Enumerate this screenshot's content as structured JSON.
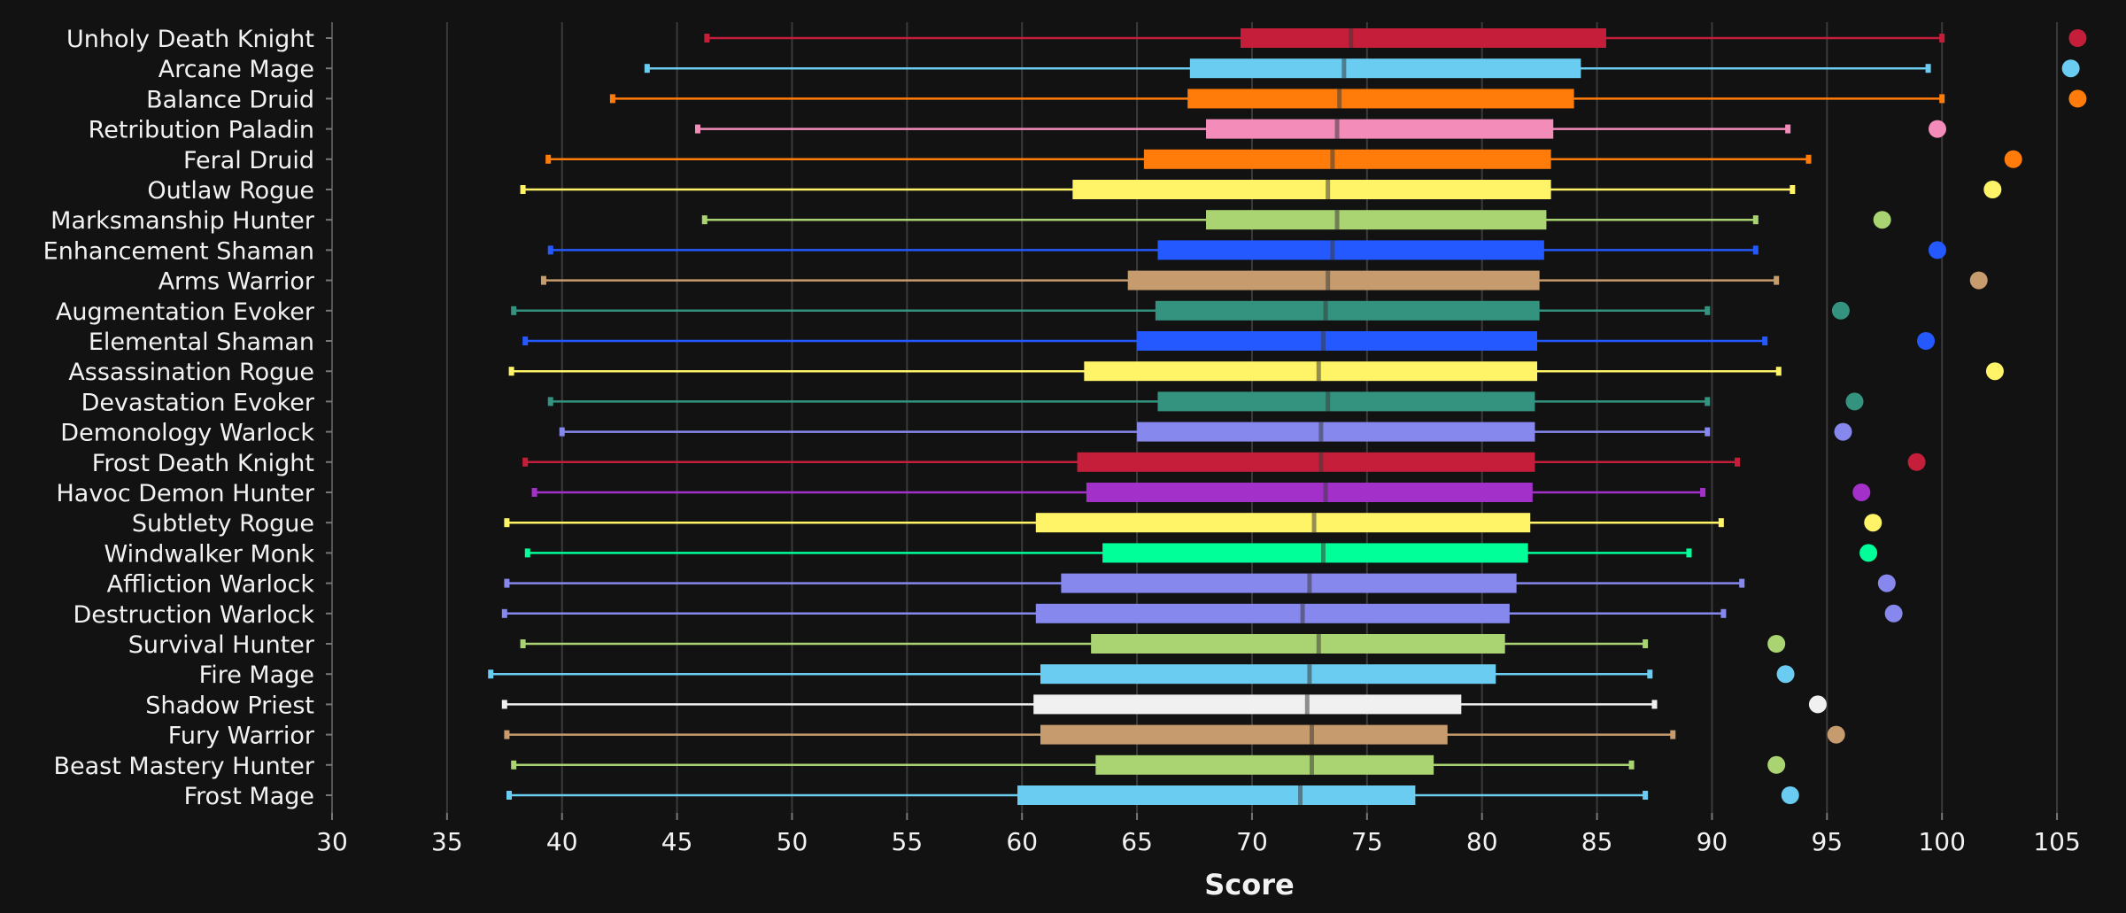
{
  "chart_data": {
    "type": "box",
    "title": "",
    "xlabel": "Score",
    "ylabel": "",
    "xlim": [
      30,
      107
    ],
    "x_ticks": [
      30,
      35,
      40,
      45,
      50,
      55,
      60,
      65,
      70,
      75,
      80,
      85,
      90,
      95,
      100,
      105
    ],
    "grid": "vertical",
    "orientation": "horizontal",
    "categories": [
      {
        "name": "Unholy Death Knight",
        "color": "#c41e3a",
        "min": 46.3,
        "q1": 69.5,
        "median": 74.3,
        "q3": 85.4,
        "max": 100.0,
        "outlier": 105.9
      },
      {
        "name": "Arcane Mage",
        "color": "#69ccf0",
        "min": 43.7,
        "q1": 67.3,
        "median": 74.0,
        "q3": 84.3,
        "max": 99.4,
        "outlier": 105.6
      },
      {
        "name": "Balance Druid",
        "color": "#ff7c0a",
        "min": 42.2,
        "q1": 67.2,
        "median": 73.8,
        "q3": 84.0,
        "max": 100.0,
        "outlier": 105.9
      },
      {
        "name": "Retribution Paladin",
        "color": "#f48cba",
        "min": 45.9,
        "q1": 68.0,
        "median": 73.7,
        "q3": 83.1,
        "max": 93.3,
        "outlier": 99.8
      },
      {
        "name": "Feral Druid",
        "color": "#ff7c0a",
        "min": 39.4,
        "q1": 65.3,
        "median": 73.5,
        "q3": 83.0,
        "max": 94.2,
        "outlier": 103.1
      },
      {
        "name": "Outlaw Rogue",
        "color": "#fff468",
        "min": 38.3,
        "q1": 62.2,
        "median": 73.3,
        "q3": 83.0,
        "max": 93.5,
        "outlier": 102.2
      },
      {
        "name": "Marksmanship Hunter",
        "color": "#aad372",
        "min": 46.2,
        "q1": 68.0,
        "median": 73.7,
        "q3": 82.8,
        "max": 91.9,
        "outlier": 97.4
      },
      {
        "name": "Enhancement Shaman",
        "color": "#2459ff",
        "min": 39.5,
        "q1": 65.9,
        "median": 73.5,
        "q3": 82.7,
        "max": 91.9,
        "outlier": 99.8
      },
      {
        "name": "Arms Warrior",
        "color": "#c69b6d",
        "min": 39.2,
        "q1": 64.6,
        "median": 73.3,
        "q3": 82.5,
        "max": 92.8,
        "outlier": 101.6
      },
      {
        "name": "Augmentation Evoker",
        "color": "#33937f",
        "min": 37.9,
        "q1": 65.8,
        "median": 73.2,
        "q3": 82.5,
        "max": 89.8,
        "outlier": 95.6
      },
      {
        "name": "Elemental Shaman",
        "color": "#2459ff",
        "min": 38.4,
        "q1": 65.0,
        "median": 73.1,
        "q3": 82.4,
        "max": 92.3,
        "outlier": 99.3
      },
      {
        "name": "Assassination Rogue",
        "color": "#fff468",
        "min": 37.8,
        "q1": 62.7,
        "median": 72.9,
        "q3": 82.4,
        "max": 92.9,
        "outlier": 102.3
      },
      {
        "name": "Devastation Evoker",
        "color": "#33937f",
        "min": 39.5,
        "q1": 65.9,
        "median": 73.3,
        "q3": 82.3,
        "max": 89.8,
        "outlier": 96.2
      },
      {
        "name": "Demonology Warlock",
        "color": "#8788ee",
        "min": 40.0,
        "q1": 65.0,
        "median": 73.0,
        "q3": 82.3,
        "max": 89.8,
        "outlier": 95.7
      },
      {
        "name": "Frost Death Knight",
        "color": "#c41e3a",
        "min": 38.4,
        "q1": 62.4,
        "median": 73.0,
        "q3": 82.3,
        "max": 91.1,
        "outlier": 98.9
      },
      {
        "name": "Havoc Demon Hunter",
        "color": "#a330c9",
        "min": 38.8,
        "q1": 62.8,
        "median": 73.2,
        "q3": 82.2,
        "max": 89.6,
        "outlier": 96.5
      },
      {
        "name": "Subtlety Rogue",
        "color": "#fff468",
        "min": 37.6,
        "q1": 60.6,
        "median": 72.7,
        "q3": 82.1,
        "max": 90.4,
        "outlier": 97.0
      },
      {
        "name": "Windwalker Monk",
        "color": "#00ff98",
        "min": 38.5,
        "q1": 63.5,
        "median": 73.1,
        "q3": 82.0,
        "max": 89.0,
        "outlier": 96.8
      },
      {
        "name": "Affliction Warlock",
        "color": "#8788ee",
        "min": 37.6,
        "q1": 61.7,
        "median": 72.5,
        "q3": 81.5,
        "max": 91.3,
        "outlier": 97.6
      },
      {
        "name": "Destruction Warlock",
        "color": "#8788ee",
        "min": 37.5,
        "q1": 60.6,
        "median": 72.2,
        "q3": 81.2,
        "max": 90.5,
        "outlier": 97.9
      },
      {
        "name": "Survival Hunter",
        "color": "#aad372",
        "min": 38.3,
        "q1": 63.0,
        "median": 72.9,
        "q3": 81.0,
        "max": 87.1,
        "outlier": 92.8
      },
      {
        "name": "Fire Mage",
        "color": "#69ccf0",
        "min": 36.9,
        "q1": 60.8,
        "median": 72.5,
        "q3": 80.6,
        "max": 87.3,
        "outlier": 93.2
      },
      {
        "name": "Shadow Priest",
        "color": "#f0f0f0",
        "min": 37.5,
        "q1": 60.5,
        "median": 72.4,
        "q3": 79.1,
        "max": 87.5,
        "outlier": 94.6
      },
      {
        "name": "Fury Warrior",
        "color": "#c69b6d",
        "min": 37.6,
        "q1": 60.8,
        "median": 72.6,
        "q3": 78.5,
        "max": 88.3,
        "outlier": 95.4
      },
      {
        "name": "Beast Mastery Hunter",
        "color": "#aad372",
        "min": 37.9,
        "q1": 63.2,
        "median": 72.6,
        "q3": 77.9,
        "max": 86.5,
        "outlier": 92.8
      },
      {
        "name": "Frost Mage",
        "color": "#69ccf0",
        "min": 37.7,
        "q1": 59.8,
        "median": 72.1,
        "q3": 77.1,
        "max": 87.1,
        "outlier": 93.4
      }
    ]
  }
}
